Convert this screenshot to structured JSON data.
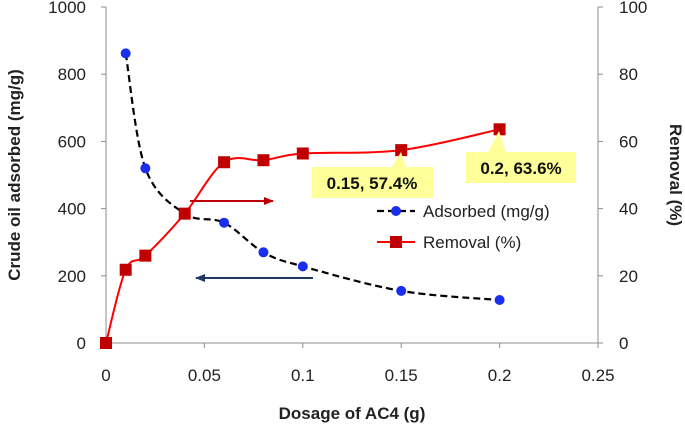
{
  "chart_data": {
    "type": "line",
    "title": "",
    "xlabel": "Dosage of AC4 (g)",
    "ylabel": "Crude oil adsorbed (mg/g)",
    "y2label": "Removal (%)",
    "xlim": [
      0,
      0.25
    ],
    "ylim": [
      0,
      1000
    ],
    "y2lim": [
      0,
      100
    ],
    "x_ticks": [
      "0",
      "0.05",
      "0.1",
      "0.15",
      "0.2",
      "0.25"
    ],
    "y_ticks": [
      "0",
      "200",
      "400",
      "600",
      "800",
      "1000"
    ],
    "y2_ticks": [
      "0",
      "20",
      "40",
      "60",
      "80",
      "100"
    ],
    "grid": false,
    "legend_position": "center-right",
    "series": [
      {
        "name": "Adsorbed (mg/g)",
        "axis": "left",
        "color": "#1a2ef0",
        "line_color": "#000000",
        "line_style": "dashed-smooth",
        "marker": "circle",
        "x": [
          0.01,
          0.02,
          0.04,
          0.06,
          0.08,
          0.1,
          0.15,
          0.2
        ],
        "values": [
          862,
          520,
          385,
          358,
          270,
          228,
          155,
          128
        ]
      },
      {
        "name": "Removal (%)",
        "axis": "right",
        "color": "#c00000",
        "line_color": "#ff0000",
        "line_style": "solid-smooth",
        "marker": "square",
        "x": [
          0,
          0.01,
          0.02,
          0.04,
          0.06,
          0.08,
          0.1,
          0.15,
          0.2
        ],
        "values": [
          0,
          21.8,
          26,
          38.5,
          53.8,
          54.4,
          56.4,
          57.4,
          63.6
        ]
      }
    ],
    "annotations": [
      {
        "text": "0.15, 57.4%",
        "x": 0.15,
        "y": 57.4,
        "axis": "right"
      },
      {
        "text": "0.2, 63.6%",
        "x": 0.2,
        "y": 63.6,
        "axis": "right"
      }
    ],
    "arrows": [
      {
        "direction": "right",
        "color": "#c00000",
        "meaning": "Removal (%) uses right axis"
      },
      {
        "direction": "left",
        "color": "#1f3864",
        "meaning": "Adsorbed (mg/g) uses left axis"
      }
    ]
  }
}
